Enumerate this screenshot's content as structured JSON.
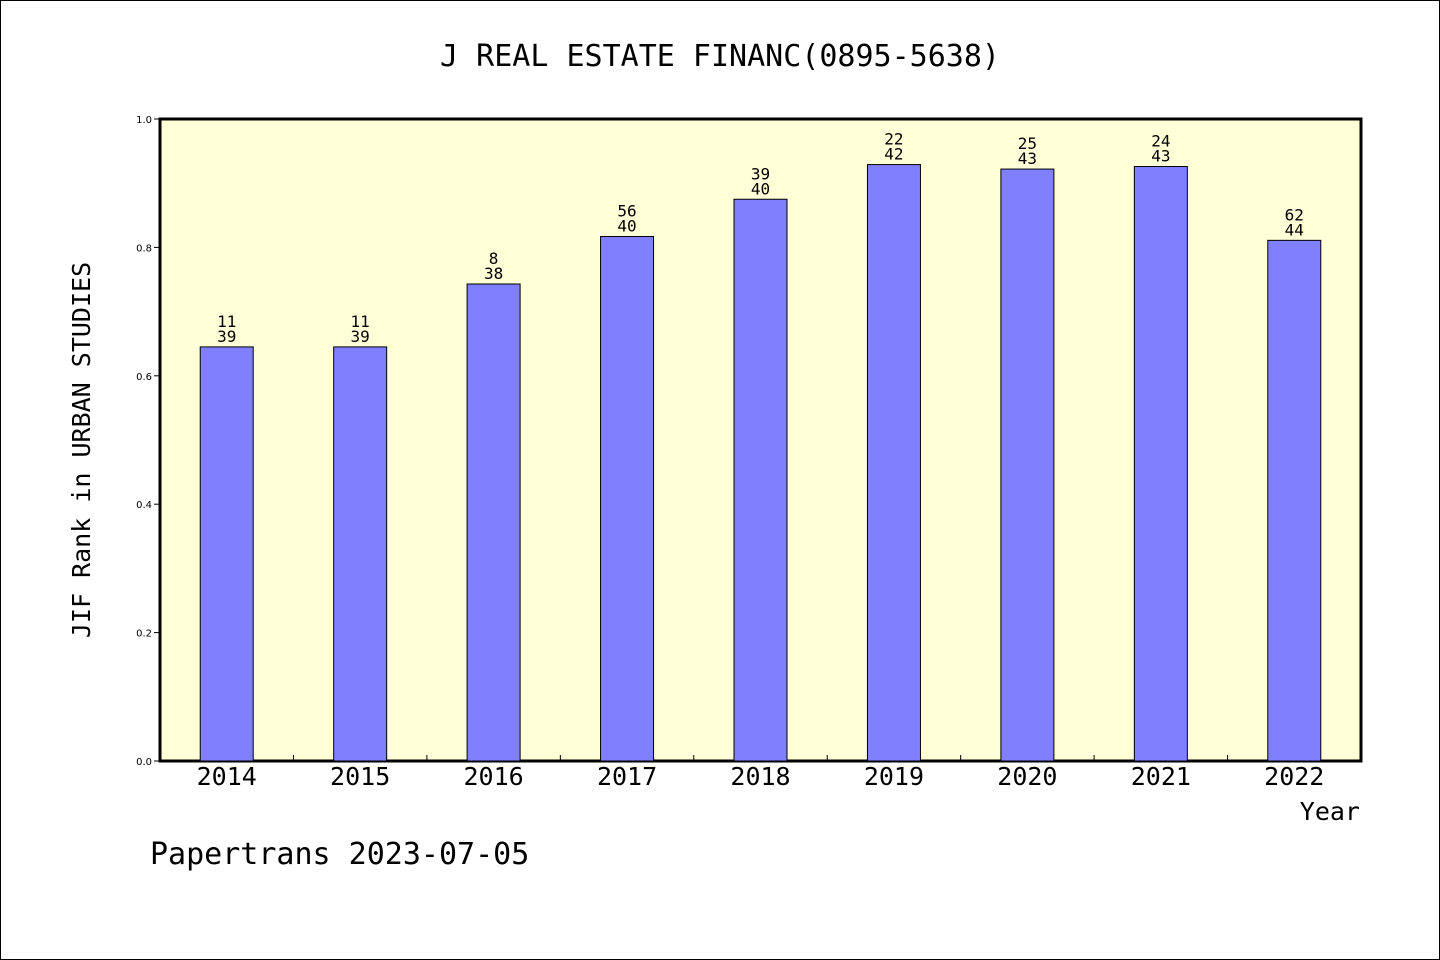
{
  "chart_data": {
    "type": "bar",
    "title": "J REAL ESTATE FINANC(0895-5638)",
    "xlabel": "Year",
    "ylabel": "JIF Rank in URBAN STUDIES",
    "categories": [
      "2014",
      "2015",
      "2016",
      "2017",
      "2018",
      "2019",
      "2020",
      "2021",
      "2022"
    ],
    "values": [
      0.645,
      0.645,
      0.743,
      0.817,
      0.875,
      0.929,
      0.922,
      0.926,
      0.811
    ],
    "labels_top": [
      "11",
      "11",
      "8",
      "56",
      "39",
      "22",
      "25",
      "24",
      "62"
    ],
    "labels_bottom": [
      "39",
      "39",
      "38",
      "40",
      "40",
      "42",
      "43",
      "43",
      "44"
    ],
    "yticks": [
      "0.0",
      "0.2",
      "0.4",
      "0.6",
      "0.8",
      "1.0"
    ],
    "ylim": [
      0,
      1.0
    ],
    "grid": false,
    "colors": {
      "bar": "#8080ff",
      "plot_background": "#ffffd8"
    }
  },
  "footer": "Papertrans 2023-07-05"
}
